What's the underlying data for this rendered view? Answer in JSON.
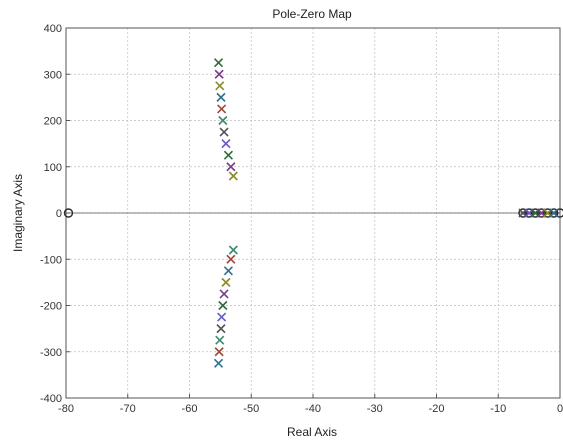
{
  "chart_data": {
    "type": "scatter",
    "title": "Pole-Zero Map",
    "xlabel": "Real Axis",
    "ylabel": "Imaginary Axis",
    "xlim": [
      -80,
      0
    ],
    "ylim": [
      -400,
      400
    ],
    "x_ticks": [
      -80,
      -70,
      -60,
      -50,
      -40,
      -30,
      -20,
      -10,
      0
    ],
    "x_tick_labels": [
      "-80",
      "-70",
      "-60",
      "-50",
      "-40",
      "-30",
      "-20",
      "-10",
      "0"
    ],
    "y_ticks": [
      -400,
      -300,
      -200,
      -100,
      0,
      100,
      200,
      300,
      400
    ],
    "y_tick_labels": [
      "-400",
      "-300",
      "-200",
      "-100",
      "0",
      "100",
      "200",
      "300",
      "400"
    ],
    "grid": true,
    "pole_marker": "x",
    "zero_marker": "o",
    "series": [
      {
        "marker": "zero",
        "points": [
          {
            "x": -79.6,
            "y": 0
          },
          {
            "x": -6.0,
            "y": 0
          },
          {
            "x": -5.0,
            "y": 0
          },
          {
            "x": -4.0,
            "y": 0
          },
          {
            "x": -3.0,
            "y": 0
          },
          {
            "x": -2.0,
            "y": 0
          },
          {
            "x": -1.0,
            "y": 0
          },
          {
            "x": 0.0,
            "y": 0
          }
        ]
      },
      {
        "marker": "pole",
        "points": [
          {
            "x": -55.3,
            "y": 325
          },
          {
            "x": -55.2,
            "y": 300
          },
          {
            "x": -55.1,
            "y": 275
          },
          {
            "x": -54.9,
            "y": 250
          },
          {
            "x": -54.8,
            "y": 225
          },
          {
            "x": -54.6,
            "y": 200
          },
          {
            "x": -54.4,
            "y": 175
          },
          {
            "x": -54.1,
            "y": 150
          },
          {
            "x": -53.7,
            "y": 125
          },
          {
            "x": -53.3,
            "y": 100
          },
          {
            "x": -52.9,
            "y": 80
          },
          {
            "x": -55.3,
            "y": -325
          },
          {
            "x": -55.2,
            "y": -300
          },
          {
            "x": -55.1,
            "y": -275
          },
          {
            "x": -54.9,
            "y": -250
          },
          {
            "x": -54.8,
            "y": -225
          },
          {
            "x": -54.6,
            "y": -200
          },
          {
            "x": -54.4,
            "y": -175
          },
          {
            "x": -54.1,
            "y": -150
          },
          {
            "x": -53.7,
            "y": -125
          },
          {
            "x": -53.3,
            "y": -100
          },
          {
            "x": -52.9,
            "y": -80
          },
          {
            "x": -6.0,
            "y": 0
          },
          {
            "x": -5.0,
            "y": 0
          },
          {
            "x": -4.0,
            "y": 0
          },
          {
            "x": -3.0,
            "y": 0
          },
          {
            "x": -2.0,
            "y": 0
          },
          {
            "x": -1.0,
            "y": 0
          }
        ]
      }
    ],
    "colors": {
      "grid": "#bfbfbf",
      "axis": "#555555",
      "zero_line": "#555555",
      "zero_marker": "#2a2a2a",
      "pole_markers": [
        "#2e6b3a",
        "#7a3d8c",
        "#8a8a2a",
        "#2f6f8f",
        "#a04a3a",
        "#3a8a6a",
        "#555555",
        "#6a5acd"
      ]
    }
  }
}
